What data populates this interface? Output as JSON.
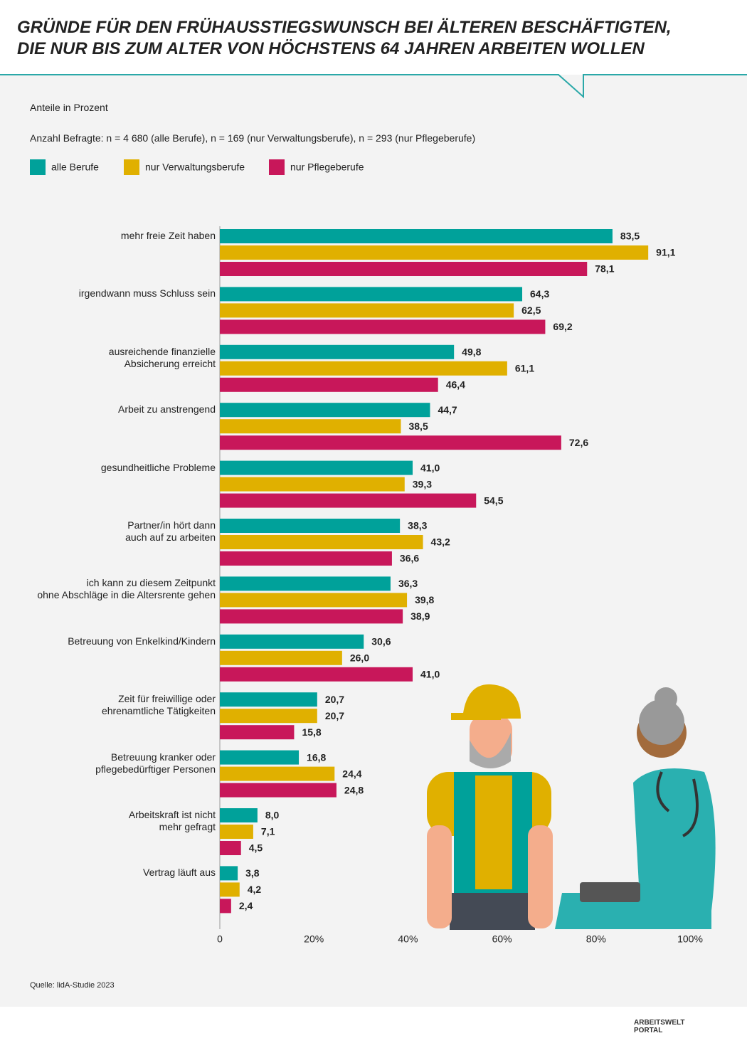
{
  "chart_data": {
    "type": "hbar",
    "title": "GRÜNDE FÜR DEN FRÜHAUSSTIEGSWUNSCH BEI ÄLTEREN BESCHÄFTIGTEN,\nDIE NUR BIS ZUM ALTER VON HÖCHSTENS 64 JAHREN ARBEITEN WOLLEN",
    "subtitle": "Anteile in Prozent",
    "note": "Anzahl Befragte: n = 4 680 (alle Berufe), n = 169 (nur Verwaltungsberufe), n = 293 (nur Pflegeberufe)",
    "source": "Quelle: lidA-Studie 2023",
    "logo": [
      "ARBEITSWELT",
      "PORTAL"
    ],
    "categories": [
      "mehr freie Zeit haben",
      "irgendwann muss Schluss sein",
      "ausreichende finanzielle\nAbsicherung erreicht",
      "Arbeit zu anstrengend",
      "gesundheitliche Probleme",
      "Partner/in hört dann\nauch auf zu arbeiten",
      "ich kann zu diesem Zeitpunkt\nohne Abschläge in die Altersrente gehen",
      "Betreuung von Enkelkind/Kindern",
      "Zeit für freiwillige oder\nehrenamtliche Tätigkeiten",
      "Betreuung kranker oder\npflegebedürftiger Personen",
      "Arbeitskraft ist nicht\nmehr gefragt",
      "Vertrag läuft aus"
    ],
    "series": [
      {
        "name": "alle Berufe",
        "color": "#00a19a",
        "values": [
          83.5,
          64.3,
          49.8,
          44.7,
          41.0,
          38.3,
          36.3,
          30.6,
          20.7,
          16.8,
          8.0,
          3.8
        ],
        "value_labels": [
          "83,5",
          "64,3",
          "49,8",
          "44,7",
          "41,0",
          "38,3",
          "36,3",
          "30,6",
          "20,7",
          "16,8",
          "8,0",
          "3,8"
        ]
      },
      {
        "name": "nur Verwaltungsberufe",
        "color": "#e0b000",
        "values": [
          91.1,
          62.5,
          61.1,
          38.5,
          39.3,
          43.2,
          39.8,
          26.0,
          20.7,
          24.4,
          7.1,
          4.2
        ],
        "value_labels": [
          "91,1",
          "62,5",
          "61,1",
          "38,5",
          "39,3",
          "43,2",
          "39,8",
          "26,0",
          "20,7",
          "24,4",
          "7,1",
          "4,2"
        ]
      },
      {
        "name": "nur Pflegeberufe",
        "color": "#c8175a",
        "values": [
          78.1,
          69.2,
          46.4,
          72.6,
          54.5,
          36.6,
          38.9,
          41.0,
          15.8,
          24.8,
          4.5,
          2.4
        ],
        "value_labels": [
          "78,1",
          "69,2",
          "46,4",
          "72,6",
          "54,5",
          "36,6",
          "38,9",
          "41,0",
          "15,8",
          "24,8",
          "4,5",
          "2,4"
        ]
      }
    ],
    "xlim": [
      0,
      100
    ],
    "xticks": [
      0,
      {
        "value": 20,
        "label": "20%"
      },
      {
        "value": 40,
        "label": "40%"
      },
      {
        "value": 60,
        "label": "60%"
      },
      {
        "value": 80,
        "label": "80%"
      },
      {
        "value": 100,
        "label": "100%"
      }
    ],
    "grid": false
  }
}
